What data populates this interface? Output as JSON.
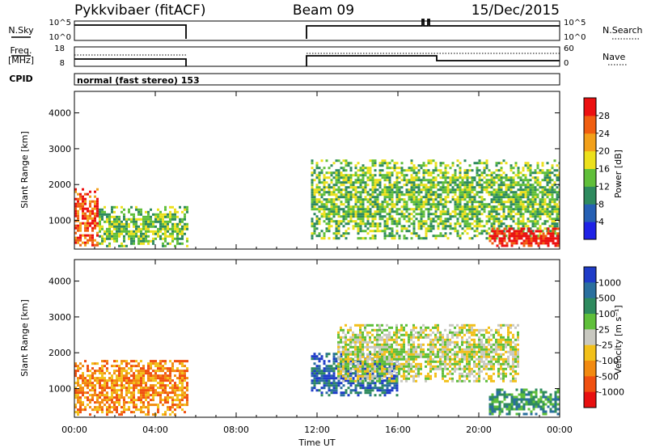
{
  "header": {
    "radar": "Pykkvibaer (fitACF)",
    "beam": "Beam 09",
    "date": "15/Dec/2015"
  },
  "time_axis": {
    "label": "Time UT",
    "ticks": [
      "00:00",
      "04:00",
      "08:00",
      "12:00",
      "16:00",
      "20:00",
      "00:00"
    ],
    "range_hours": [
      0,
      24
    ]
  },
  "info_panels": {
    "nsky_label": "N.Sky",
    "nsky_ticks": [
      "10^5",
      "10^0"
    ],
    "nsearch_label": "N.Search",
    "nsearch_ticks": [
      "10^5",
      "10^0"
    ],
    "freq_label_1": "Freq.",
    "freq_label_2": "[MHz]",
    "freq_ticks": [
      "18",
      "8"
    ],
    "nave_label": "Nave",
    "nave_ticks": [
      "60",
      "0"
    ],
    "cpid_label": "CPID",
    "cpid_text": "normal (fast stereo) 153"
  },
  "chart_data": [
    {
      "type": "heatmap",
      "name": "power",
      "ylabel": "Slant Range [km]",
      "y_ticks": [
        1000,
        2000,
        3000,
        4000
      ],
      "ylim": [
        200,
        4600
      ],
      "colorbar_label": "Power [dB]",
      "colorbar_ticks": [
        "4",
        "8",
        "12",
        "16",
        "20",
        "24",
        "28"
      ],
      "colors": [
        "#1f22e6",
        "#2660b4",
        "#2e8a5e",
        "#60bf3a",
        "#ece01c",
        "#f2a01a",
        "#f05e10",
        "#ec1010"
      ],
      "regions": [
        {
          "t": [
            0.0,
            1.2
          ],
          "r": [
            300,
            1900
          ],
          "level": 6
        },
        {
          "t": [
            1.2,
            5.6
          ],
          "r": [
            300,
            1400
          ],
          "level": 3
        },
        {
          "t": [
            11.7,
            24.0
          ],
          "r": [
            500,
            2700
          ],
          "level": 3
        },
        {
          "t": [
            20.5,
            24.0
          ],
          "r": [
            300,
            800
          ],
          "level": 7
        }
      ]
    },
    {
      "type": "heatmap",
      "name": "velocity",
      "ylabel": "Slant Range [km]",
      "y_ticks": [
        1000,
        2000,
        3000,
        4000
      ],
      "ylim": [
        200,
        4600
      ],
      "colorbar_label": "Velocity [m s⁻¹]",
      "colorbar_ticks": [
        "1000",
        "500",
        "100",
        "25",
        "-25",
        "-100",
        "-500",
        "-1000"
      ],
      "colors": [
        "#1f3cc8",
        "#2a6f9e",
        "#2e8a5e",
        "#5fbf3a",
        "#c8c8c0",
        "#f2c01a",
        "#f28a10",
        "#f05010",
        "#e81010"
      ],
      "regions": [
        {
          "t": [
            0.0,
            5.6
          ],
          "r": [
            300,
            1800
          ],
          "level": 6
        },
        {
          "t": [
            11.7,
            16.0
          ],
          "r": [
            800,
            2000
          ],
          "level": 1
        },
        {
          "t": [
            13.0,
            22.0
          ],
          "r": [
            1200,
            2800
          ],
          "level": 4
        },
        {
          "t": [
            20.5,
            24.0
          ],
          "r": [
            300,
            1000
          ],
          "level": 2
        }
      ]
    }
  ]
}
